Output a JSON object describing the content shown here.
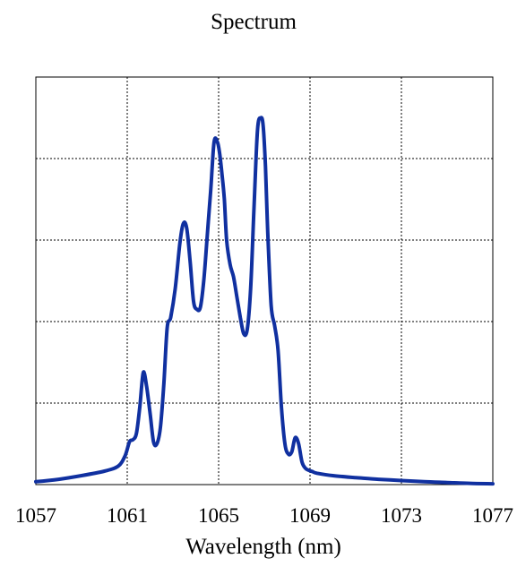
{
  "chart_data": {
    "type": "line",
    "title": "Spectrum",
    "xlabel": "Wavelength (nm)",
    "ylabel": "",
    "xlim": [
      1057,
      1077
    ],
    "ylim": [
      0,
      1
    ],
    "grid": true,
    "x_ticks": [
      "1057",
      "1061",
      "1065",
      "1069",
      "1073",
      "1077"
    ],
    "y_ticks_count": 6,
    "line_color": "#1030a0",
    "series": [
      {
        "x": [
          1057.0,
          1058.0,
          1059.0,
          1060.0,
          1060.6,
          1060.9,
          1061.1,
          1061.25,
          1061.4,
          1061.55,
          1061.7,
          1061.85,
          1062.0,
          1062.15,
          1062.3,
          1062.45,
          1062.6,
          1062.75,
          1062.9,
          1063.1,
          1063.3,
          1063.45,
          1063.6,
          1063.75,
          1063.9,
          1064.05,
          1064.2,
          1064.35,
          1064.5,
          1064.65,
          1064.8,
          1064.95,
          1065.05,
          1065.15,
          1065.25,
          1065.35,
          1065.5,
          1065.65,
          1065.8,
          1065.95,
          1066.1,
          1066.25,
          1066.4,
          1066.55,
          1066.7,
          1066.85,
          1066.95,
          1067.05,
          1067.15,
          1067.3,
          1067.45,
          1067.6,
          1067.75,
          1067.9,
          1068.05,
          1068.2,
          1068.35,
          1068.5,
          1068.65,
          1068.8,
          1068.95,
          1069.1,
          1069.3,
          1070.0,
          1071.0,
          1072.0,
          1073.0,
          1074.0,
          1075.0,
          1076.0,
          1077.0
        ],
        "y": [
          0.007,
          0.013,
          0.022,
          0.033,
          0.045,
          0.07,
          0.105,
          0.11,
          0.125,
          0.19,
          0.275,
          0.24,
          0.175,
          0.105,
          0.1,
          0.14,
          0.245,
          0.385,
          0.41,
          0.48,
          0.59,
          0.64,
          0.63,
          0.55,
          0.45,
          0.43,
          0.435,
          0.5,
          0.61,
          0.72,
          0.84,
          0.84,
          0.81,
          0.76,
          0.7,
          0.6,
          0.54,
          0.51,
          0.46,
          0.41,
          0.37,
          0.38,
          0.48,
          0.68,
          0.87,
          0.9,
          0.88,
          0.78,
          0.62,
          0.44,
          0.39,
          0.33,
          0.19,
          0.1,
          0.075,
          0.08,
          0.115,
          0.1,
          0.055,
          0.04,
          0.035,
          0.032,
          0.028,
          0.022,
          0.017,
          0.013,
          0.01,
          0.007,
          0.005,
          0.003,
          0.002
        ]
      }
    ]
  }
}
